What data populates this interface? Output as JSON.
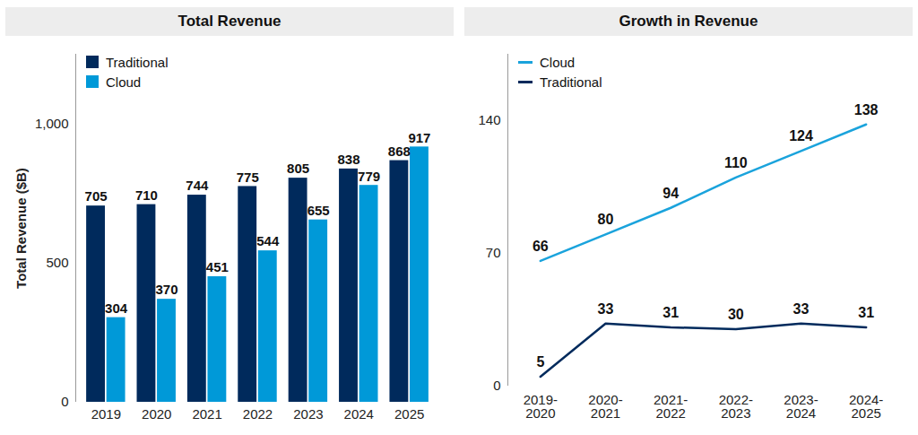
{
  "chart_data": [
    {
      "type": "bar",
      "title": "Total Revenue",
      "categories": [
        "2019",
        "2020",
        "2021",
        "2022",
        "2023",
        "2024",
        "2025"
      ],
      "series": [
        {
          "name": "Traditional",
          "color": "#002a5c",
          "values": [
            705,
            710,
            744,
            775,
            805,
            838,
            868
          ]
        },
        {
          "name": "Cloud",
          "color": "#0099d8",
          "values": [
            304,
            370,
            451,
            544,
            655,
            779,
            917
          ]
        }
      ],
      "ylabel": "Total Revenue ($B)",
      "ylim": [
        0,
        1250
      ],
      "yticks": [
        0,
        500,
        {
          "value": 1000,
          "label": "1,000"
        }
      ],
      "grid": false,
      "legend": "top-left",
      "data_labels": true
    },
    {
      "type": "line",
      "title": "Growth in Revenue",
      "categories": [
        "2019-2020",
        "2020-2021",
        "2021-2022",
        "2022-2023",
        "2023-2024",
        "2024-2025"
      ],
      "series": [
        {
          "name": "Cloud",
          "color": "#1aa3dc",
          "values": [
            66,
            80,
            94,
            110,
            124,
            138
          ]
        },
        {
          "name": "Traditional",
          "color": "#002a5c",
          "values": [
            5,
            33,
            31,
            30,
            33,
            31
          ]
        }
      ],
      "ylim": [
        0,
        175
      ],
      "yticks": [
        0,
        70,
        140
      ],
      "grid": false,
      "legend": "top-left",
      "data_labels": true
    }
  ]
}
